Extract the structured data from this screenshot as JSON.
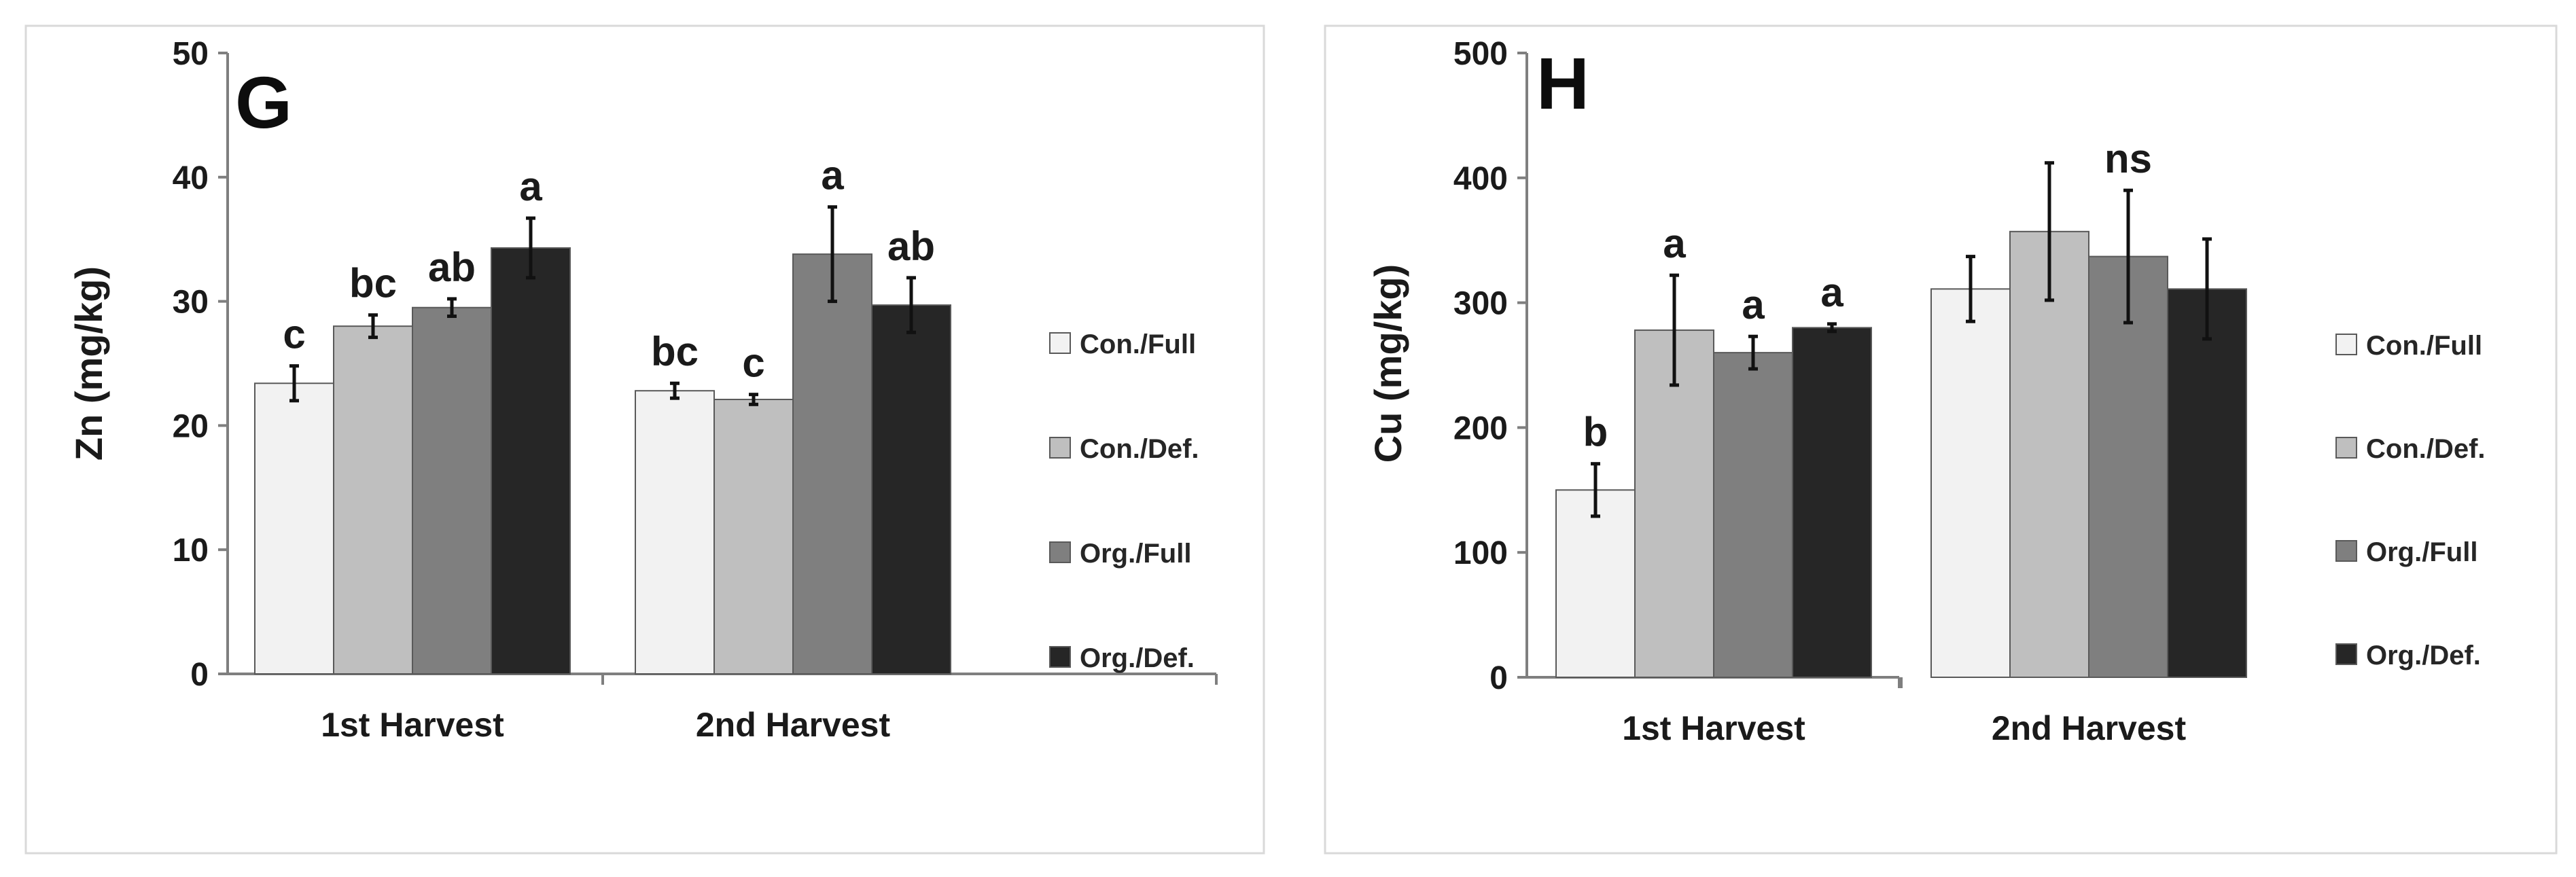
{
  "chart_data": [
    {
      "type": "bar",
      "panel_label": "G",
      "ylabel": "Zn (mg/kg)",
      "ylim": [
        0,
        50
      ],
      "yticks": [
        "0",
        "10",
        "20",
        "30",
        "40",
        "50"
      ],
      "categories": [
        "1st Harvest",
        "2nd Harvest"
      ],
      "series": [
        {
          "name": "Con./Full",
          "color": "#f2f2f2",
          "values": [
            23.4,
            22.8
          ],
          "errors": [
            1.4,
            0.6
          ],
          "labels": [
            "c",
            "bc"
          ]
        },
        {
          "name": "Con./Def.",
          "color": "#bfbfbf",
          "values": [
            28.0,
            22.1
          ],
          "errors": [
            0.9,
            0.4
          ],
          "labels": [
            "bc",
            "c"
          ]
        },
        {
          "name": "Org./Full",
          "color": "#7f7f7f",
          "values": [
            29.5,
            33.8
          ],
          "errors": [
            0.7,
            3.8
          ],
          "labels": [
            "ab",
            "a"
          ]
        },
        {
          "name": "Org./Def.",
          "color": "#262626",
          "values": [
            34.3,
            29.7
          ],
          "errors": [
            2.4,
            2.2
          ],
          "labels": [
            "a",
            "ab"
          ]
        }
      ],
      "grid": false,
      "legend_position": "right"
    },
    {
      "type": "bar",
      "panel_label": "H",
      "ylabel": "Cu (mg/kg)",
      "ylim": [
        0,
        500
      ],
      "yticks": [
        "0",
        "100",
        "200",
        "300",
        "400",
        "500"
      ],
      "categories": [
        "1st Harvest",
        "2nd Harvest"
      ],
      "series": [
        {
          "name": "Con./Full",
          "color": "#f2f2f2",
          "values": [
            150,
            311
          ],
          "errors": [
            21,
            26
          ],
          "labels": [
            "b",
            ""
          ]
        },
        {
          "name": "Con./Def.",
          "color": "#bfbfbf",
          "values": [
            278,
            357
          ],
          "errors": [
            44,
            55
          ],
          "labels": [
            "a",
            ""
          ]
        },
        {
          "name": "Org./Full",
          "color": "#7f7f7f",
          "values": [
            260,
            337
          ],
          "errors": [
            13,
            53
          ],
          "labels": [
            "a",
            "ns"
          ]
        },
        {
          "name": "Org./Def.",
          "color": "#262626",
          "values": [
            280,
            311
          ],
          "errors": [
            3,
            40
          ],
          "labels": [
            "a",
            ""
          ]
        }
      ],
      "grid": false,
      "legend_position": "right"
    }
  ]
}
